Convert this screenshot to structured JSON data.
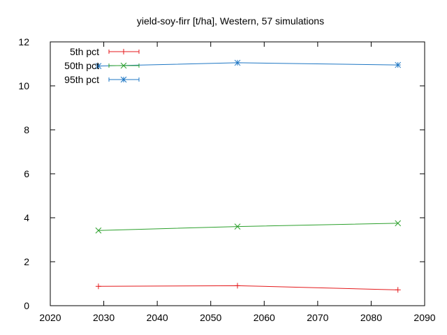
{
  "chart_data": {
    "type": "line",
    "title": "yield-soy-firr [t/ha], Western, 57 simulations",
    "xlabel": "",
    "ylabel": "",
    "xlim": [
      2020,
      2090
    ],
    "ylim": [
      0,
      12
    ],
    "xticks": [
      2020,
      2030,
      2040,
      2050,
      2060,
      2070,
      2080,
      2090
    ],
    "yticks": [
      0,
      2,
      4,
      6,
      8,
      10,
      12
    ],
    "grid": false,
    "legend_position": "top-left",
    "series": [
      {
        "name": "5th pct",
        "color": "#e41a1c",
        "marker": "plus",
        "x": [
          2029,
          2055,
          2085
        ],
        "y": [
          0.88,
          0.91,
          0.72
        ]
      },
      {
        "name": "50th pct",
        "color": "#2ca02c",
        "marker": "cross",
        "x": [
          2029,
          2055,
          2085
        ],
        "y": [
          3.42,
          3.6,
          3.75
        ]
      },
      {
        "name": "95th pct",
        "color": "#1f77c4",
        "marker": "asterisk",
        "x": [
          2029,
          2055,
          2085
        ],
        "y": [
          10.9,
          11.05,
          10.95
        ]
      }
    ]
  }
}
